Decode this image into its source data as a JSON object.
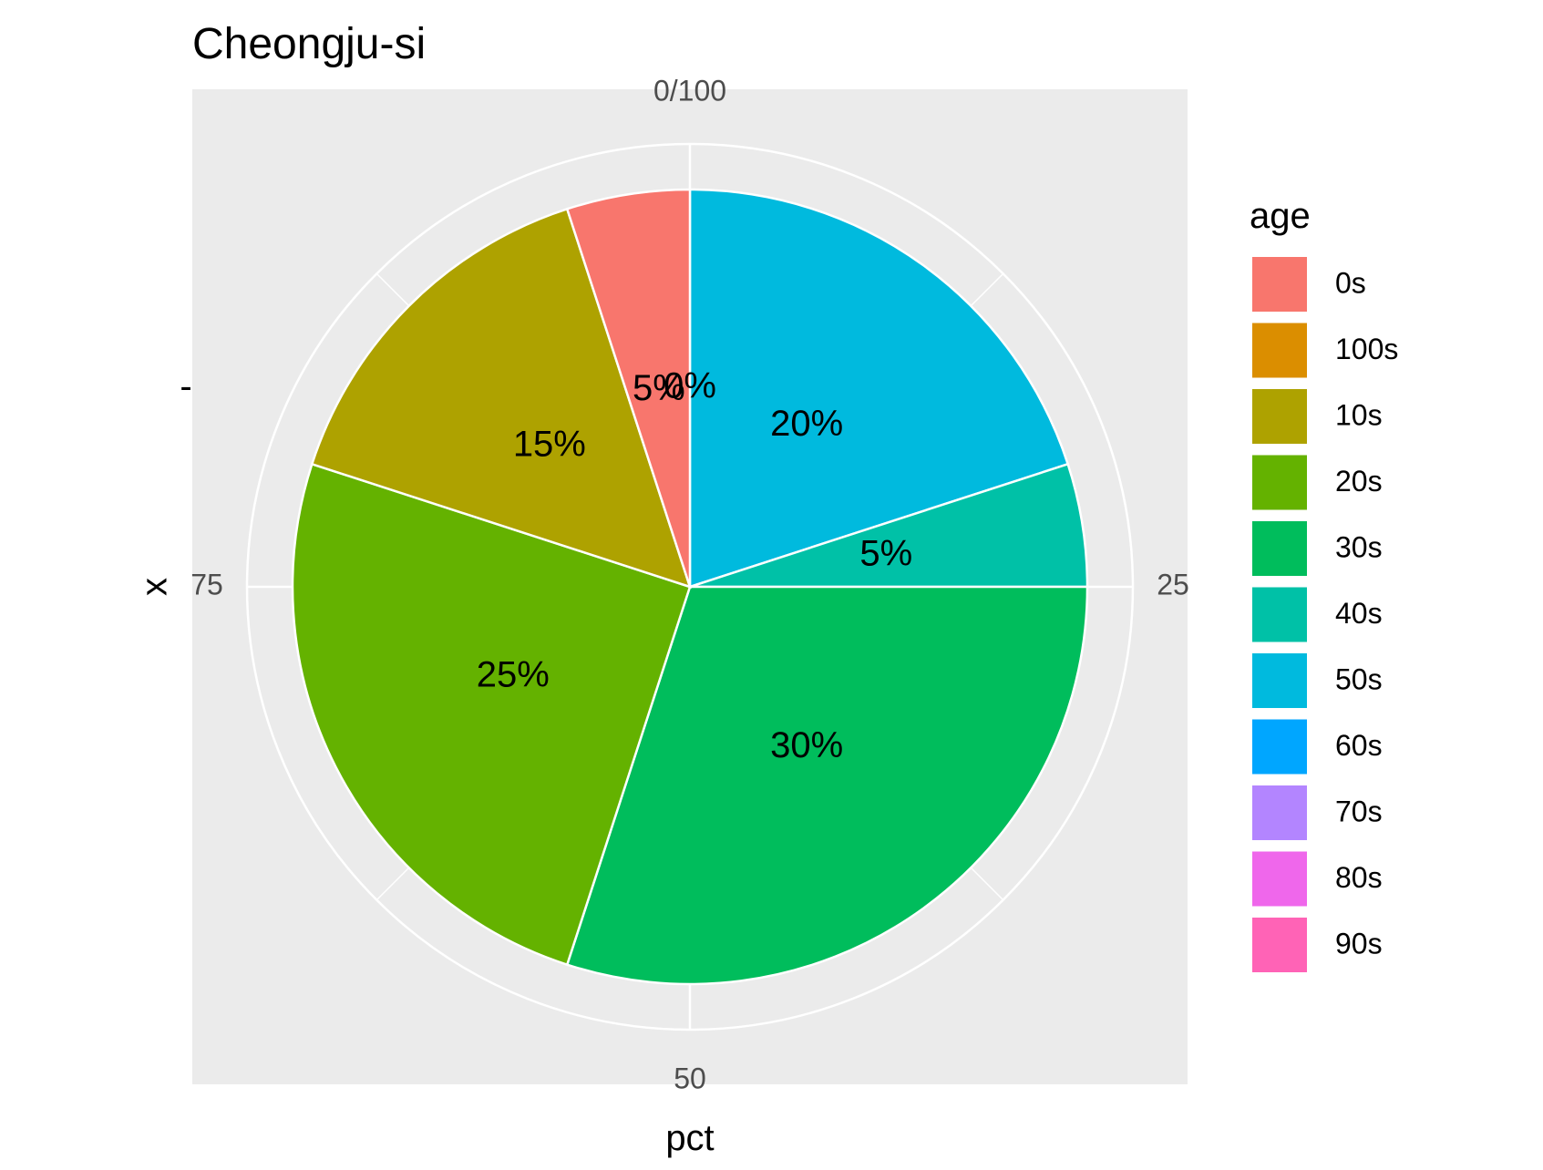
{
  "chart_data": {
    "type": "pie",
    "title": "Cheongju-si",
    "xlabel": "pct",
    "ylabel": "x",
    "y_tick_labels": [
      "-"
    ],
    "theta_ticks": [
      {
        "value": 0,
        "label": "0/100"
      },
      {
        "value": 25,
        "label": "25"
      },
      {
        "value": 50,
        "label": "50"
      },
      {
        "value": 75,
        "label": "75"
      }
    ],
    "legend": {
      "title": "age",
      "placement": "right",
      "items": [
        {
          "label": "0s",
          "color": "#F8766D"
        },
        {
          "label": "100s",
          "color": "#DB8E00"
        },
        {
          "label": "10s",
          "color": "#AEA200"
        },
        {
          "label": "20s",
          "color": "#64B200"
        },
        {
          "label": "30s",
          "color": "#00BD5C"
        },
        {
          "label": "40s",
          "color": "#00C1A7"
        },
        {
          "label": "50s",
          "color": "#00BADE"
        },
        {
          "label": "60s",
          "color": "#00A6FF"
        },
        {
          "label": "70s",
          "color": "#B385FF"
        },
        {
          "label": "80s",
          "color": "#EF67EB"
        },
        {
          "label": "90s",
          "color": "#FF63B6"
        }
      ]
    },
    "slices": [
      {
        "label": "50s",
        "value": 20,
        "text": "20%",
        "color": "#00BADE"
      },
      {
        "label": "40s",
        "value": 5,
        "text": "5%",
        "color": "#00C1A7"
      },
      {
        "label": "30s",
        "value": 30,
        "text": "30%",
        "color": "#00BD5C"
      },
      {
        "label": "20s",
        "value": 25,
        "text": "25%",
        "color": "#64B200"
      },
      {
        "label": "10s",
        "value": 15,
        "text": "15%",
        "color": "#AEA200"
      },
      {
        "label": "0s",
        "value": 5,
        "text": "5%",
        "color": "#F8766D"
      },
      {
        "label": "100s",
        "value": 0,
        "text": "0%",
        "color": "#DB8E00"
      }
    ],
    "panel_background": "#EBEBEB",
    "grid": true
  }
}
